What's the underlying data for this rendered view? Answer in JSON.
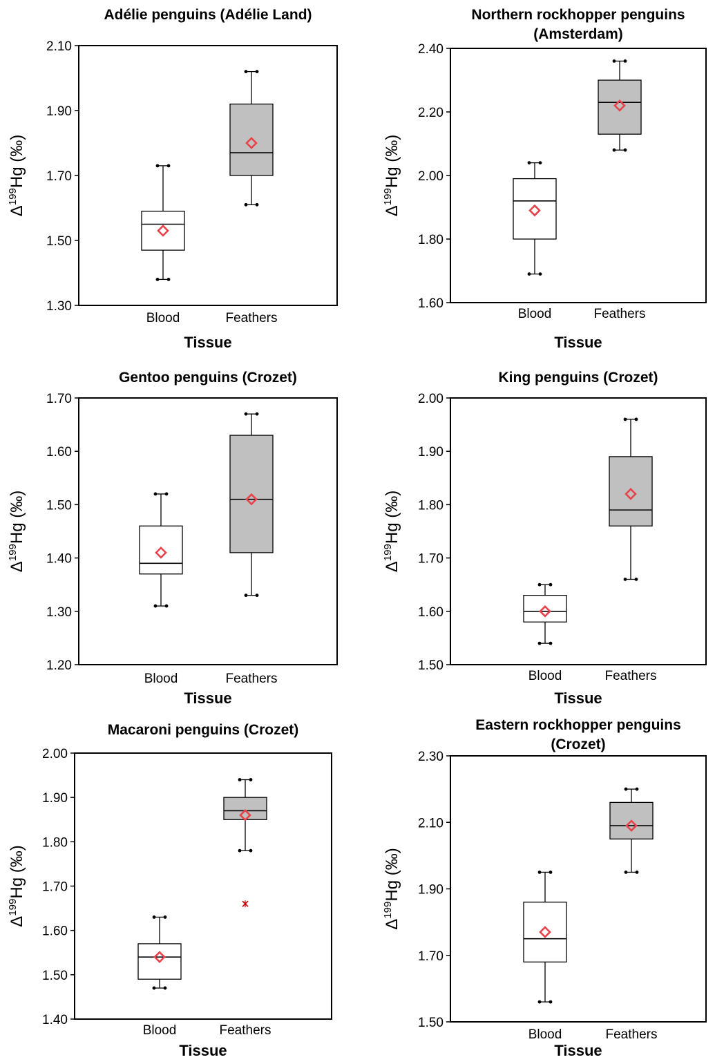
{
  "colors": {
    "feathers_fill": "#c0c0c0",
    "blood_fill": "#ffffff",
    "mean_marker": "#e8424a",
    "outlier": "#c00000"
  },
  "chart_data": [
    {
      "type": "box",
      "title": "Adélie penguins (Adélie Land)",
      "xlabel": "Tissue",
      "ylabel_prefix": "Δ",
      "ylabel_sup": "199",
      "ylabel_suffix": "Hg (‰)",
      "ylim": [
        1.3,
        2.1
      ],
      "yticks": [
        "1.30",
        "1.50",
        "1.70",
        "1.90",
        "2.10"
      ],
      "categories": [
        "Blood",
        "Feathers"
      ],
      "boxes": [
        {
          "name": "Blood",
          "min": 1.38,
          "q1": 1.47,
          "median": 1.55,
          "q3": 1.59,
          "max": 1.73,
          "mean": 1.53,
          "outliers": []
        },
        {
          "name": "Feathers",
          "min": 1.61,
          "q1": 1.7,
          "median": 1.77,
          "q3": 1.92,
          "max": 2.02,
          "mean": 1.8,
          "outliers": []
        }
      ]
    },
    {
      "type": "box",
      "title": "Northern rockhopper penguins (Amsterdam)",
      "title_lines": [
        "Northern rockhopper penguins",
        "(Amsterdam)"
      ],
      "xlabel": "Tissue",
      "ylabel_prefix": "Δ",
      "ylabel_sup": "199",
      "ylabel_suffix": "Hg (‰)",
      "ylim": [
        1.6,
        2.4
      ],
      "yticks": [
        "1.60",
        "1.80",
        "2.00",
        "2.20",
        "2.40"
      ],
      "categories": [
        "Blood",
        "Feathers"
      ],
      "boxes": [
        {
          "name": "Blood",
          "min": 1.69,
          "q1": 1.8,
          "median": 1.92,
          "q3": 1.99,
          "max": 2.04,
          "mean": 1.89,
          "outliers": []
        },
        {
          "name": "Feathers",
          "min": 2.08,
          "q1": 2.13,
          "median": 2.23,
          "q3": 2.3,
          "max": 2.36,
          "mean": 2.22,
          "outliers": []
        }
      ]
    },
    {
      "type": "box",
      "title": "Gentoo penguins (Crozet)",
      "xlabel": "Tissue",
      "ylabel_prefix": "Δ",
      "ylabel_sup": "199",
      "ylabel_suffix": "Hg (‰)",
      "ylim": [
        1.2,
        1.7
      ],
      "yticks": [
        "1.20",
        "1.30",
        "1.40",
        "1.50",
        "1.60",
        "1.70"
      ],
      "categories": [
        "Blood",
        "Feathers"
      ],
      "boxes": [
        {
          "name": "Blood",
          "min": 1.31,
          "q1": 1.37,
          "median": 1.39,
          "q3": 1.46,
          "max": 1.52,
          "mean": 1.41,
          "outliers": []
        },
        {
          "name": "Feathers",
          "min": 1.33,
          "q1": 1.41,
          "median": 1.51,
          "q3": 1.63,
          "max": 1.67,
          "mean": 1.51,
          "outliers": []
        }
      ]
    },
    {
      "type": "box",
      "title": "King penguins (Crozet)",
      "xlabel": "Tissue",
      "ylabel_prefix": "Δ",
      "ylabel_sup": "199",
      "ylabel_suffix": "Hg (‰)",
      "ylim": [
        1.5,
        2.0
      ],
      "yticks": [
        "1.50",
        "1.60",
        "1.70",
        "1.80",
        "1.90",
        "2.00"
      ],
      "categories": [
        "Blood",
        "Feathers"
      ],
      "boxes": [
        {
          "name": "Blood",
          "min": 1.54,
          "q1": 1.58,
          "median": 1.6,
          "q3": 1.63,
          "max": 1.65,
          "mean": 1.6,
          "outliers": []
        },
        {
          "name": "Feathers",
          "min": 1.66,
          "q1": 1.76,
          "median": 1.79,
          "q3": 1.89,
          "max": 1.96,
          "mean": 1.82,
          "outliers": []
        }
      ]
    },
    {
      "type": "box",
      "title": "Macaroni penguins (Crozet)",
      "xlabel": "Tissue",
      "ylabel_prefix": "Δ",
      "ylabel_sup": "199",
      "ylabel_suffix": "Hg (‰)",
      "ylim": [
        1.4,
        2.0
      ],
      "yticks": [
        "1.40",
        "1.50",
        "1.60",
        "1.70",
        "1.80",
        "1.90",
        "2.00"
      ],
      "categories": [
        "Blood",
        "Feathers"
      ],
      "boxes": [
        {
          "name": "Blood",
          "min": 1.47,
          "q1": 1.49,
          "median": 1.54,
          "q3": 1.57,
          "max": 1.63,
          "mean": 1.54,
          "outliers": []
        },
        {
          "name": "Feathers",
          "min": 1.78,
          "q1": 1.85,
          "median": 1.87,
          "q3": 1.9,
          "max": 1.94,
          "mean": 1.86,
          "outliers": [
            1.66
          ]
        }
      ]
    },
    {
      "type": "box",
      "title": "Eastern rockhopper penguins (Crozet)",
      "title_lines": [
        "Eastern rockhopper penguins",
        "(Crozet)"
      ],
      "xlabel": "Tissue",
      "ylabel_prefix": "Δ",
      "ylabel_sup": "199",
      "ylabel_suffix": "Hg (‰)",
      "ylim": [
        1.5,
        2.3
      ],
      "yticks": [
        "1.50",
        "1.70",
        "1.90",
        "2.10",
        "2.30"
      ],
      "categories": [
        "Blood",
        "Feathers"
      ],
      "boxes": [
        {
          "name": "Blood",
          "min": 1.56,
          "q1": 1.68,
          "median": 1.75,
          "q3": 1.86,
          "max": 1.95,
          "mean": 1.77,
          "outliers": []
        },
        {
          "name": "Feathers",
          "min": 1.95,
          "q1": 2.05,
          "median": 2.09,
          "q3": 2.16,
          "max": 2.2,
          "mean": 2.09,
          "outliers": []
        }
      ]
    }
  ]
}
